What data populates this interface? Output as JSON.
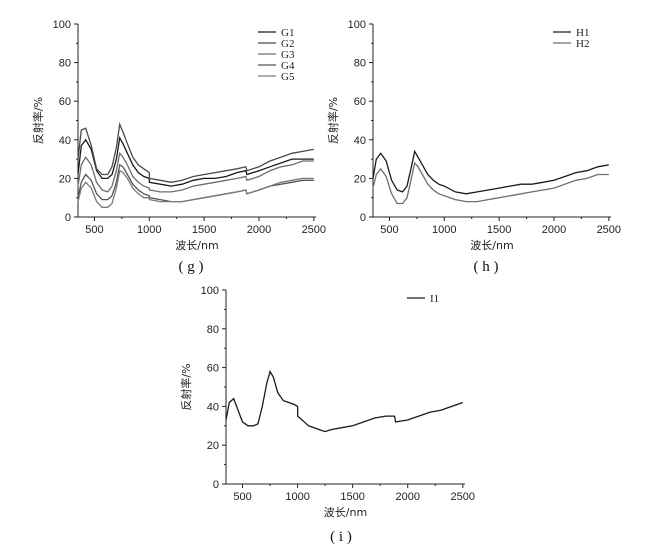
{
  "chart_data": [
    {
      "panel": "g",
      "type": "line",
      "caption": "( g )",
      "xlabel": "波长/nm",
      "ylabel": "反射率/%",
      "xlim": [
        350,
        2520
      ],
      "ylim": [
        0,
        100
      ],
      "xticks": [
        500,
        1000,
        1500,
        2000,
        2500
      ],
      "yticks": [
        0,
        20,
        40,
        60,
        80,
        100
      ],
      "legend_position": "top-right",
      "series": [
        {
          "name": "G1",
          "color": "#1a1a1a",
          "x": [
            350,
            380,
            420,
            470,
            520,
            570,
            620,
            660,
            700,
            730,
            760,
            800,
            850,
            900,
            950,
            1000,
            1001,
            1100,
            1200,
            1300,
            1400,
            1500,
            1600,
            1700,
            1800,
            1880,
            1890,
            2000,
            2100,
            2200,
            2300,
            2400,
            2500
          ],
          "y": [
            22,
            37,
            40,
            35,
            24,
            20,
            20,
            22,
            30,
            41,
            38,
            33,
            27,
            23,
            21,
            20,
            18,
            17,
            16,
            17,
            19,
            20,
            20,
            21,
            23,
            24,
            22,
            24,
            26,
            28,
            30,
            30,
            30
          ]
        },
        {
          "name": "G2",
          "color": "#4a4a4a",
          "x": [
            350,
            380,
            420,
            470,
            520,
            570,
            620,
            660,
            700,
            730,
            760,
            800,
            850,
            900,
            950,
            1000,
            1001,
            1100,
            1200,
            1300,
            1400,
            1500,
            1600,
            1700,
            1800,
            1880,
            1890,
            2000,
            2100,
            2200,
            2300,
            2400,
            2500
          ],
          "y": [
            30,
            45,
            46,
            37,
            25,
            22,
            22,
            26,
            36,
            48,
            44,
            38,
            31,
            27,
            25,
            23,
            20,
            19,
            18,
            19,
            21,
            22,
            23,
            24,
            25,
            26,
            24,
            26,
            29,
            31,
            33,
            34,
            35
          ]
        },
        {
          "name": "G3",
          "color": "#6e6e6e",
          "x": [
            350,
            380,
            420,
            470,
            520,
            570,
            620,
            660,
            700,
            730,
            760,
            800,
            850,
            900,
            950,
            1000,
            1001,
            1100,
            1200,
            1300,
            1400,
            1500,
            1600,
            1700,
            1800,
            1880,
            1890,
            2000,
            2100,
            2200,
            2300,
            2400,
            2500
          ],
          "y": [
            16,
            27,
            31,
            27,
            18,
            14,
            13,
            16,
            24,
            33,
            31,
            27,
            21,
            18,
            16,
            15,
            14,
            13,
            13,
            14,
            16,
            17,
            18,
            19,
            20,
            21,
            19,
            21,
            24,
            26,
            27,
            29,
            29
          ]
        },
        {
          "name": "G4",
          "color": "#555555",
          "x": [
            350,
            380,
            420,
            470,
            520,
            570,
            620,
            660,
            700,
            730,
            760,
            800,
            850,
            900,
            950,
            1000,
            1001,
            1100,
            1200,
            1300,
            1400,
            1500,
            1600,
            1700,
            1800,
            1880,
            1890,
            2000,
            2100,
            2200,
            2300,
            2400,
            2500
          ],
          "y": [
            10,
            18,
            22,
            19,
            12,
            9,
            9,
            11,
            18,
            27,
            26,
            22,
            17,
            14,
            12,
            11,
            10,
            9,
            8,
            8,
            9,
            10,
            11,
            12,
            13,
            14,
            12,
            14,
            16,
            17,
            18,
            19,
            19
          ]
        },
        {
          "name": "G5",
          "color": "#7a7a7a",
          "x": [
            350,
            380,
            420,
            470,
            520,
            570,
            620,
            660,
            700,
            730,
            760,
            800,
            850,
            900,
            950,
            1000,
            1001,
            1100,
            1200,
            1300,
            1400,
            1500,
            1600,
            1700,
            1800,
            1880,
            1890,
            2000,
            2100,
            2200,
            2300,
            2400,
            2500
          ],
          "y": [
            8,
            15,
            18,
            15,
            8,
            5,
            5,
            7,
            15,
            24,
            23,
            20,
            15,
            12,
            10,
            10,
            9,
            8,
            8,
            8,
            9,
            10,
            11,
            12,
            13,
            14,
            12,
            14,
            16,
            18,
            19,
            20,
            20
          ]
        }
      ]
    },
    {
      "panel": "h",
      "type": "line",
      "caption": "( h )",
      "xlabel": "波长/nm",
      "ylabel": "反射率/%",
      "xlim": [
        350,
        2520
      ],
      "ylim": [
        0,
        100
      ],
      "xticks": [
        500,
        1000,
        1500,
        2000,
        2500
      ],
      "yticks": [
        0,
        20,
        40,
        60,
        80,
        100
      ],
      "legend_position": "top-right",
      "series": [
        {
          "name": "H1",
          "color": "#1a1a1a",
          "x": [
            350,
            380,
            420,
            470,
            520,
            570,
            620,
            660,
            700,
            730,
            760,
            800,
            850,
            900,
            950,
            1000,
            1100,
            1200,
            1300,
            1400,
            1500,
            1600,
            1700,
            1800,
            1900,
            2000,
            2100,
            2200,
            2300,
            2400,
            2500
          ],
          "y": [
            20,
            30,
            33,
            29,
            19,
            14,
            13,
            16,
            26,
            34,
            31,
            27,
            22,
            19,
            17,
            16,
            13,
            12,
            13,
            14,
            15,
            16,
            17,
            17,
            18,
            19,
            21,
            23,
            24,
            26,
            27
          ]
        },
        {
          "name": "H2",
          "color": "#6e6e6e",
          "x": [
            350,
            380,
            420,
            470,
            520,
            570,
            620,
            660,
            700,
            730,
            760,
            800,
            850,
            900,
            950,
            1000,
            1100,
            1200,
            1300,
            1400,
            1500,
            1600,
            1700,
            1800,
            1900,
            2000,
            2100,
            2200,
            2300,
            2400,
            2500
          ],
          "y": [
            15,
            22,
            25,
            21,
            12,
            7,
            7,
            10,
            20,
            28,
            26,
            22,
            17,
            14,
            12,
            11,
            9,
            8,
            8,
            9,
            10,
            11,
            12,
            13,
            14,
            15,
            17,
            19,
            20,
            22,
            22
          ]
        }
      ]
    },
    {
      "panel": "i",
      "type": "line",
      "caption": "( i )",
      "xlabel": "波长/nm",
      "ylabel": "反射率/%",
      "xlim": [
        350,
        2520
      ],
      "ylim": [
        0,
        100
      ],
      "xticks": [
        500,
        1000,
        1500,
        2000,
        2500
      ],
      "yticks": [
        0,
        20,
        40,
        60,
        80,
        100
      ],
      "legend_position": "top-right",
      "series": [
        {
          "name": "I1",
          "color": "#1a1a1a",
          "x": [
            350,
            380,
            420,
            460,
            500,
            550,
            600,
            640,
            680,
            720,
            750,
            780,
            820,
            870,
            920,
            970,
            1000,
            1001,
            1100,
            1200,
            1250,
            1300,
            1400,
            1500,
            1600,
            1700,
            1800,
            1880,
            1890,
            2000,
            2100,
            2200,
            2300,
            2400,
            2500
          ],
          "y": [
            33,
            42,
            44,
            38,
            32,
            30,
            30,
            31,
            40,
            52,
            58,
            55,
            47,
            43,
            42,
            41,
            40,
            35,
            30,
            28,
            27,
            28,
            29,
            30,
            32,
            34,
            35,
            35,
            32,
            33,
            35,
            37,
            38,
            40,
            42
          ]
        }
      ]
    }
  ]
}
